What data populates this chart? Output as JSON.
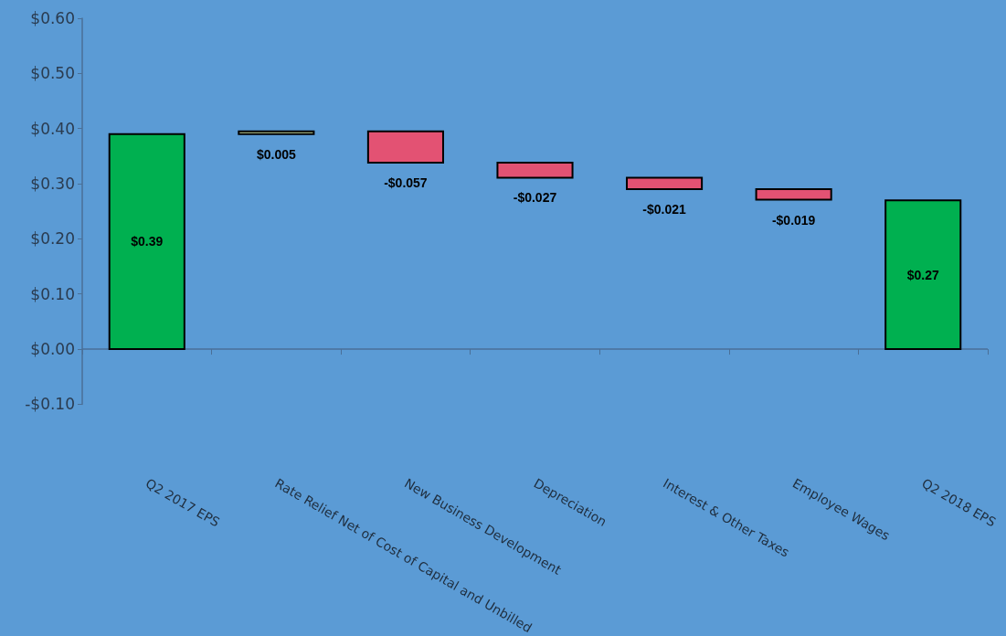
{
  "chart_data": {
    "type": "bar",
    "categories": [
      "Q2 2017 EPS",
      "Rate Relief Net of Cost of Capital and Unbilled",
      "New Business Development",
      "Depreciation",
      "Interest & Other Taxes",
      "Employee Wages",
      "Q2 2018 EPS"
    ],
    "values": [
      0.39,
      0.005,
      -0.057,
      -0.027,
      -0.021,
      -0.019,
      0.27
    ],
    "base": [
      0,
      0.39,
      0.395,
      0.338,
      0.311,
      0.29,
      0
    ],
    "colors": [
      "#00b050",
      "#c4d79b",
      "#e35273",
      "#e35273",
      "#e35273",
      "#e35273",
      "#00b050"
    ],
    "value_labels": [
      "$0.39",
      "$0.005",
      "-$0.057",
      "-$0.027",
      "-$0.021",
      "-$0.019",
      "$0.27"
    ],
    "ylim": [
      -0.1,
      0.6
    ],
    "yticks": [
      {
        "value": -0.1,
        "label": "-$0.10"
      },
      {
        "value": 0,
        "label": "$0.00"
      },
      {
        "value": 0.1,
        "label": "$0.10"
      },
      {
        "value": 0.2,
        "label": "$0.20"
      },
      {
        "value": 0.3,
        "label": "$0.30"
      },
      {
        "value": 0.4,
        "label": "$0.40"
      },
      {
        "value": 0.5,
        "label": "$0.50"
      },
      {
        "value": 0.6,
        "label": "$0.60"
      }
    ],
    "ref_lines": [
      {
        "axis": "y",
        "value": 0,
        "color": "#4a6f97"
      }
    ],
    "grid": false
  }
}
